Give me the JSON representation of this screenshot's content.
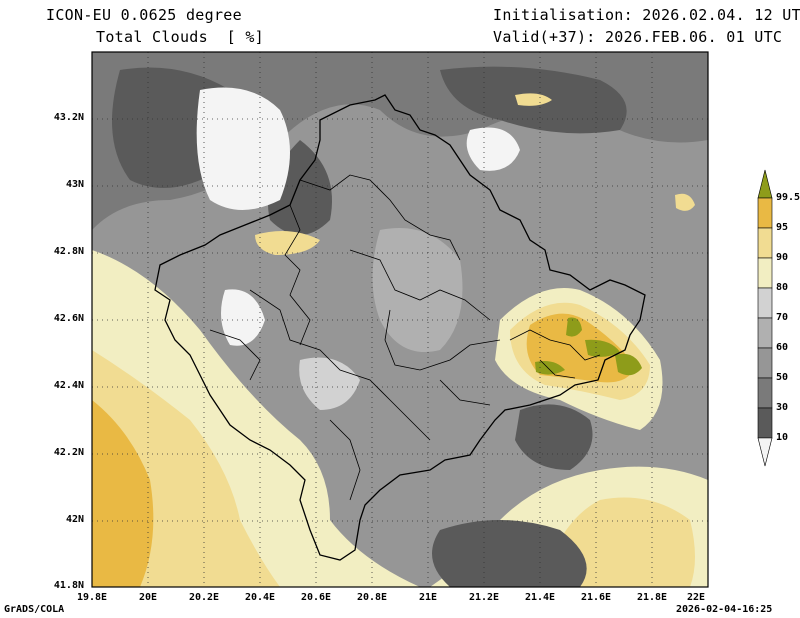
{
  "header": {
    "model": "ICON-EU 0.0625 degree",
    "variable": "Total Clouds",
    "unit": "[ %]",
    "init": "Initialisation: 2026.02.04. 12 UTC",
    "valid": "Valid(+37): 2026.FEB.06. 01 UTC"
  },
  "axes": {
    "lat_ticks": [
      "43.2N",
      "43N",
      "42.8N",
      "42.6N",
      "42.4N",
      "42.2N",
      "42N",
      "41.8N"
    ],
    "lon_ticks": [
      "19.8E",
      "20E",
      "20.2E",
      "20.4E",
      "20.6E",
      "20.8E",
      "21E",
      "21.2E",
      "21.4E",
      "21.6E",
      "21.8E",
      "22E"
    ],
    "lat_range": [
      41.8,
      43.4
    ],
    "lon_range": [
      19.8,
      22.0
    ]
  },
  "colorbar": {
    "levels": [
      "10",
      "30",
      "50",
      "60",
      "70",
      "80",
      "90",
      "95",
      "99.5"
    ],
    "colors": {
      "below10": "#f4f4f4",
      "c10_30": "#5a5a5a",
      "c30_50": "#7a7a7a",
      "c50_60": "#969696",
      "c60_70": "#b0b0b0",
      "c70_80": "#d2d2d2",
      "c80_90": "#f2eec2",
      "c90_95": "#f1dc92",
      "c95_99": "#e9b944",
      "above99": "#8e9c1a"
    }
  },
  "footer": {
    "left": "GrADS/COLA",
    "right": "2026-02-04-16:25"
  }
}
